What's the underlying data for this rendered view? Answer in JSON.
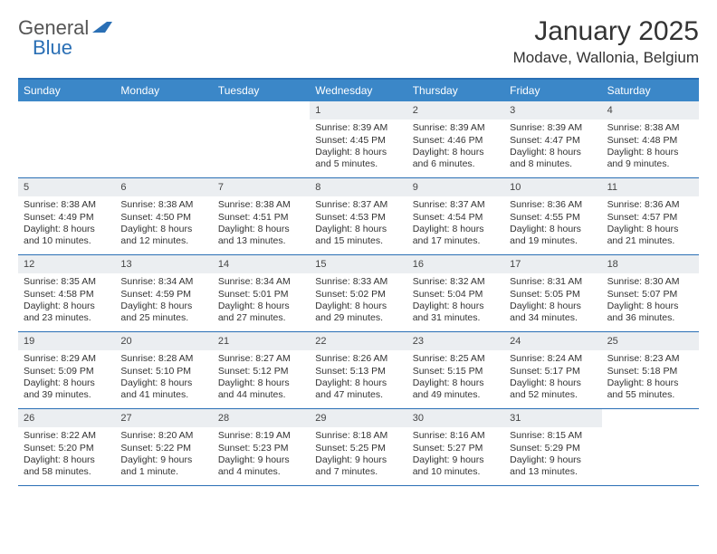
{
  "logo": {
    "general": "General",
    "blue": "Blue"
  },
  "title": "January 2025",
  "location": "Modave, Wallonia, Belgium",
  "colors": {
    "header_bg": "#3b87c8",
    "header_border": "#2a6fb5",
    "daynum_bg": "#ebeef1",
    "text": "#333333"
  },
  "day_names": [
    "Sunday",
    "Monday",
    "Tuesday",
    "Wednesday",
    "Thursday",
    "Friday",
    "Saturday"
  ],
  "weeks": [
    [
      {
        "day": "",
        "sunrise": "",
        "sunset": "",
        "daylight": ""
      },
      {
        "day": "",
        "sunrise": "",
        "sunset": "",
        "daylight": ""
      },
      {
        "day": "",
        "sunrise": "",
        "sunset": "",
        "daylight": ""
      },
      {
        "day": "1",
        "sunrise": "Sunrise: 8:39 AM",
        "sunset": "Sunset: 4:45 PM",
        "daylight": "Daylight: 8 hours\nand 5 minutes."
      },
      {
        "day": "2",
        "sunrise": "Sunrise: 8:39 AM",
        "sunset": "Sunset: 4:46 PM",
        "daylight": "Daylight: 8 hours\nand 6 minutes."
      },
      {
        "day": "3",
        "sunrise": "Sunrise: 8:39 AM",
        "sunset": "Sunset: 4:47 PM",
        "daylight": "Daylight: 8 hours\nand 8 minutes."
      },
      {
        "day": "4",
        "sunrise": "Sunrise: 8:38 AM",
        "sunset": "Sunset: 4:48 PM",
        "daylight": "Daylight: 8 hours\nand 9 minutes."
      }
    ],
    [
      {
        "day": "5",
        "sunrise": "Sunrise: 8:38 AM",
        "sunset": "Sunset: 4:49 PM",
        "daylight": "Daylight: 8 hours\nand 10 minutes."
      },
      {
        "day": "6",
        "sunrise": "Sunrise: 8:38 AM",
        "sunset": "Sunset: 4:50 PM",
        "daylight": "Daylight: 8 hours\nand 12 minutes."
      },
      {
        "day": "7",
        "sunrise": "Sunrise: 8:38 AM",
        "sunset": "Sunset: 4:51 PM",
        "daylight": "Daylight: 8 hours\nand 13 minutes."
      },
      {
        "day": "8",
        "sunrise": "Sunrise: 8:37 AM",
        "sunset": "Sunset: 4:53 PM",
        "daylight": "Daylight: 8 hours\nand 15 minutes."
      },
      {
        "day": "9",
        "sunrise": "Sunrise: 8:37 AM",
        "sunset": "Sunset: 4:54 PM",
        "daylight": "Daylight: 8 hours\nand 17 minutes."
      },
      {
        "day": "10",
        "sunrise": "Sunrise: 8:36 AM",
        "sunset": "Sunset: 4:55 PM",
        "daylight": "Daylight: 8 hours\nand 19 minutes."
      },
      {
        "day": "11",
        "sunrise": "Sunrise: 8:36 AM",
        "sunset": "Sunset: 4:57 PM",
        "daylight": "Daylight: 8 hours\nand 21 minutes."
      }
    ],
    [
      {
        "day": "12",
        "sunrise": "Sunrise: 8:35 AM",
        "sunset": "Sunset: 4:58 PM",
        "daylight": "Daylight: 8 hours\nand 23 minutes."
      },
      {
        "day": "13",
        "sunrise": "Sunrise: 8:34 AM",
        "sunset": "Sunset: 4:59 PM",
        "daylight": "Daylight: 8 hours\nand 25 minutes."
      },
      {
        "day": "14",
        "sunrise": "Sunrise: 8:34 AM",
        "sunset": "Sunset: 5:01 PM",
        "daylight": "Daylight: 8 hours\nand 27 minutes."
      },
      {
        "day": "15",
        "sunrise": "Sunrise: 8:33 AM",
        "sunset": "Sunset: 5:02 PM",
        "daylight": "Daylight: 8 hours\nand 29 minutes."
      },
      {
        "day": "16",
        "sunrise": "Sunrise: 8:32 AM",
        "sunset": "Sunset: 5:04 PM",
        "daylight": "Daylight: 8 hours\nand 31 minutes."
      },
      {
        "day": "17",
        "sunrise": "Sunrise: 8:31 AM",
        "sunset": "Sunset: 5:05 PM",
        "daylight": "Daylight: 8 hours\nand 34 minutes."
      },
      {
        "day": "18",
        "sunrise": "Sunrise: 8:30 AM",
        "sunset": "Sunset: 5:07 PM",
        "daylight": "Daylight: 8 hours\nand 36 minutes."
      }
    ],
    [
      {
        "day": "19",
        "sunrise": "Sunrise: 8:29 AM",
        "sunset": "Sunset: 5:09 PM",
        "daylight": "Daylight: 8 hours\nand 39 minutes."
      },
      {
        "day": "20",
        "sunrise": "Sunrise: 8:28 AM",
        "sunset": "Sunset: 5:10 PM",
        "daylight": "Daylight: 8 hours\nand 41 minutes."
      },
      {
        "day": "21",
        "sunrise": "Sunrise: 8:27 AM",
        "sunset": "Sunset: 5:12 PM",
        "daylight": "Daylight: 8 hours\nand 44 minutes."
      },
      {
        "day": "22",
        "sunrise": "Sunrise: 8:26 AM",
        "sunset": "Sunset: 5:13 PM",
        "daylight": "Daylight: 8 hours\nand 47 minutes."
      },
      {
        "day": "23",
        "sunrise": "Sunrise: 8:25 AM",
        "sunset": "Sunset: 5:15 PM",
        "daylight": "Daylight: 8 hours\nand 49 minutes."
      },
      {
        "day": "24",
        "sunrise": "Sunrise: 8:24 AM",
        "sunset": "Sunset: 5:17 PM",
        "daylight": "Daylight: 8 hours\nand 52 minutes."
      },
      {
        "day": "25",
        "sunrise": "Sunrise: 8:23 AM",
        "sunset": "Sunset: 5:18 PM",
        "daylight": "Daylight: 8 hours\nand 55 minutes."
      }
    ],
    [
      {
        "day": "26",
        "sunrise": "Sunrise: 8:22 AM",
        "sunset": "Sunset: 5:20 PM",
        "daylight": "Daylight: 8 hours\nand 58 minutes."
      },
      {
        "day": "27",
        "sunrise": "Sunrise: 8:20 AM",
        "sunset": "Sunset: 5:22 PM",
        "daylight": "Daylight: 9 hours\nand 1 minute."
      },
      {
        "day": "28",
        "sunrise": "Sunrise: 8:19 AM",
        "sunset": "Sunset: 5:23 PM",
        "daylight": "Daylight: 9 hours\nand 4 minutes."
      },
      {
        "day": "29",
        "sunrise": "Sunrise: 8:18 AM",
        "sunset": "Sunset: 5:25 PM",
        "daylight": "Daylight: 9 hours\nand 7 minutes."
      },
      {
        "day": "30",
        "sunrise": "Sunrise: 8:16 AM",
        "sunset": "Sunset: 5:27 PM",
        "daylight": "Daylight: 9 hours\nand 10 minutes."
      },
      {
        "day": "31",
        "sunrise": "Sunrise: 8:15 AM",
        "sunset": "Sunset: 5:29 PM",
        "daylight": "Daylight: 9 hours\nand 13 minutes."
      },
      {
        "day": "",
        "sunrise": "",
        "sunset": "",
        "daylight": ""
      }
    ]
  ]
}
